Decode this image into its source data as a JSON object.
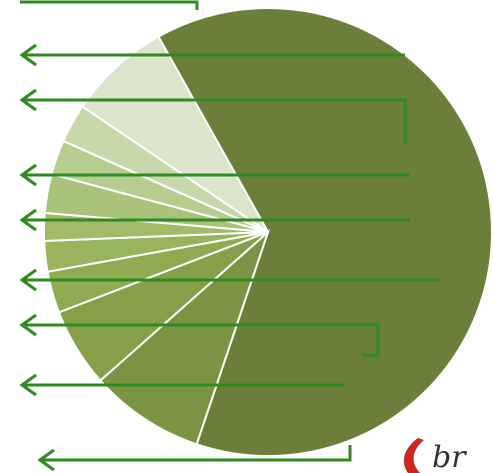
{
  "chart_data": {
    "type": "pie",
    "values": [
      63.3,
      8.3,
      5.7,
      3,
      2.2,
      2,
      2.8,
      2.5,
      2.8,
      7.4
    ],
    "colors": [
      "#6b7f3b",
      "#7a9443",
      "#85a048",
      "#8fab52",
      "#98b55d",
      "#a1bb69",
      "#aac37b",
      "#b7cd90",
      "#c7d8ab",
      "#dce5cb"
    ]
  },
  "logo_text": "br"
}
